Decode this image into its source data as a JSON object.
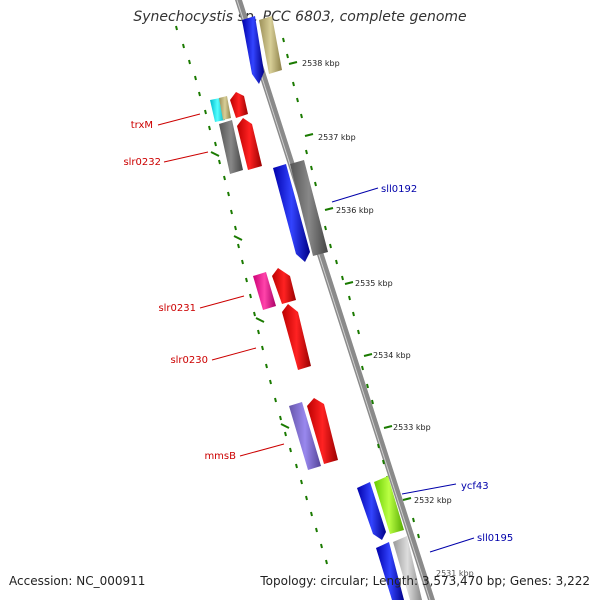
{
  "title": "Synechocystis sp. PCC 6803, complete genome",
  "accession": "Accession: NC_000911",
  "topology_info": "Topology: circular; Length: 3,573,470 bp; Genes: 3,222",
  "scale_labels": [
    "2538 kbp",
    "2537 kbp",
    "2536 kbp",
    "2535 kbp",
    "2534 kbp",
    "2533 kbp",
    "2532 kbp",
    "2531 kbp"
  ],
  "gene_labels_left": [
    "trxM",
    "slr0232",
    "slr0231",
    "slr0230",
    "mmsB"
  ],
  "gene_labels_right": [
    "sll0192",
    "ycf43",
    "sll0195"
  ],
  "colors": {
    "forward_label": "#cc0000",
    "reverse_label": "#0000aa",
    "tick": "#1a7a00",
    "backbone": "#8a8a8a"
  }
}
